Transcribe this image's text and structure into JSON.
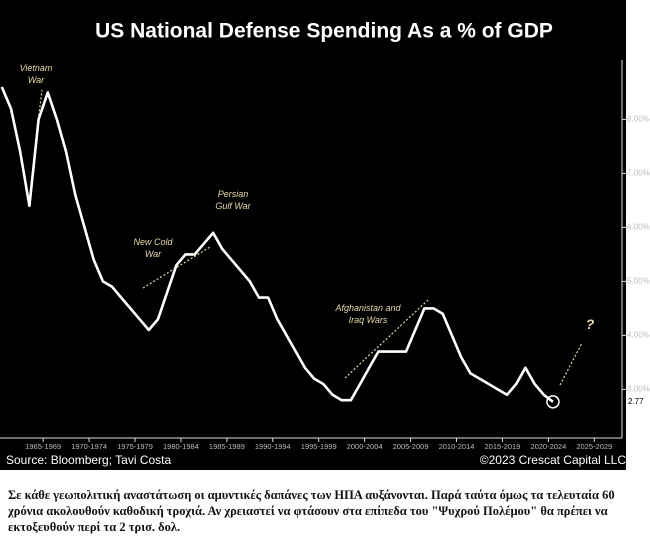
{
  "chart_data": {
    "type": "line",
    "title": "US National Defense Spending As a % of GDP",
    "source": "Source: Bloomberg; Tavi Costa",
    "copyright": "©2023 Crescat Capital LLC",
    "color": "#ffffff",
    "x": [
      1963,
      1964,
      1965,
      1966,
      1967,
      1968,
      1969,
      1970,
      1971,
      1972,
      1973,
      1974,
      1975,
      1976,
      1977,
      1978,
      1979,
      1980,
      1981,
      1982,
      1983,
      1984,
      1985,
      1986,
      1987,
      1988,
      1989,
      1990,
      1991,
      1992,
      1993,
      1994,
      1995,
      1996,
      1997,
      1998,
      1999,
      2000,
      2001,
      2002,
      2003,
      2004,
      2005,
      2006,
      2007,
      2008,
      2009,
      2010,
      2011,
      2012,
      2013,
      2014,
      2015,
      2016,
      2017,
      2018,
      2019,
      2020,
      2021,
      2022,
      2023
    ],
    "values": [
      8.6,
      8.2,
      7.4,
      6.4,
      8.0,
      8.5,
      8.0,
      7.4,
      6.6,
      6.0,
      5.4,
      5.0,
      4.9,
      4.7,
      4.5,
      4.3,
      4.1,
      4.3,
      4.8,
      5.3,
      5.5,
      5.5,
      5.7,
      5.9,
      5.6,
      5.4,
      5.2,
      5.0,
      4.7,
      4.7,
      4.3,
      4.0,
      3.7,
      3.4,
      3.2,
      3.1,
      2.9,
      2.8,
      2.8,
      3.1,
      3.4,
      3.7,
      3.7,
      3.7,
      3.7,
      4.1,
      4.5,
      4.5,
      4.4,
      4.0,
      3.6,
      3.3,
      3.2,
      3.1,
      3.0,
      2.9,
      3.1,
      3.4,
      3.1,
      2.9,
      2.77
    ],
    "xlim": [
      1962.8,
      2030.3
    ],
    "xticks": [
      {
        "value": 1967.5,
        "label": "1965-1969"
      },
      {
        "value": 1972.5,
        "label": "1970-1974"
      },
      {
        "value": 1977.5,
        "label": "1975-1979"
      },
      {
        "value": 1982.5,
        "label": "1980-1984"
      },
      {
        "value": 1987.5,
        "label": "1985-1989"
      },
      {
        "value": 1992.5,
        "label": "1990-1994"
      },
      {
        "value": 1997.5,
        "label": "1995-1999"
      },
      {
        "value": 2002.5,
        "label": "2000-2004"
      },
      {
        "value": 2007.5,
        "label": "2005-2009"
      },
      {
        "value": 2012.5,
        "label": "2010-2014"
      },
      {
        "value": 2017.5,
        "label": "2015-2019"
      },
      {
        "value": 2022.5,
        "label": "2020-2024"
      },
      {
        "value": 2027.5,
        "label": "2025-2029"
      }
    ],
    "ylim": [
      2.1,
      9.1
    ],
    "yticks": [
      {
        "value": 3,
        "label": "3.00%"
      },
      {
        "value": 4,
        "label": "4.00%"
      },
      {
        "value": 5,
        "label": "5.00%"
      },
      {
        "value": 6,
        "label": "6.00%"
      },
      {
        "value": 7,
        "label": "7.00%"
      },
      {
        "value": 8,
        "label": "8.00%"
      }
    ],
    "annotations": [
      "Vietnam War",
      "New Cold War",
      "Persian Gulf War",
      "Afghanistan and Iraq Wars",
      "?"
    ]
  },
  "caption": "Σε κάθε γεωπολιτική αναστάτωση οι αμυντικές δαπάνες των ΗΠΑ αυξάνονται. Παρά ταύτα όμως τα τελευταία 60 χρόνια ακολουθούν καθοδική τροχιά. Αν χρειαστεί να φτάσουν στα επίπεδα του \"Ψυχρού Πολέμου\" θα πρέπει να εκτοξευθούν περί τα 2 τρισ. δολ."
}
